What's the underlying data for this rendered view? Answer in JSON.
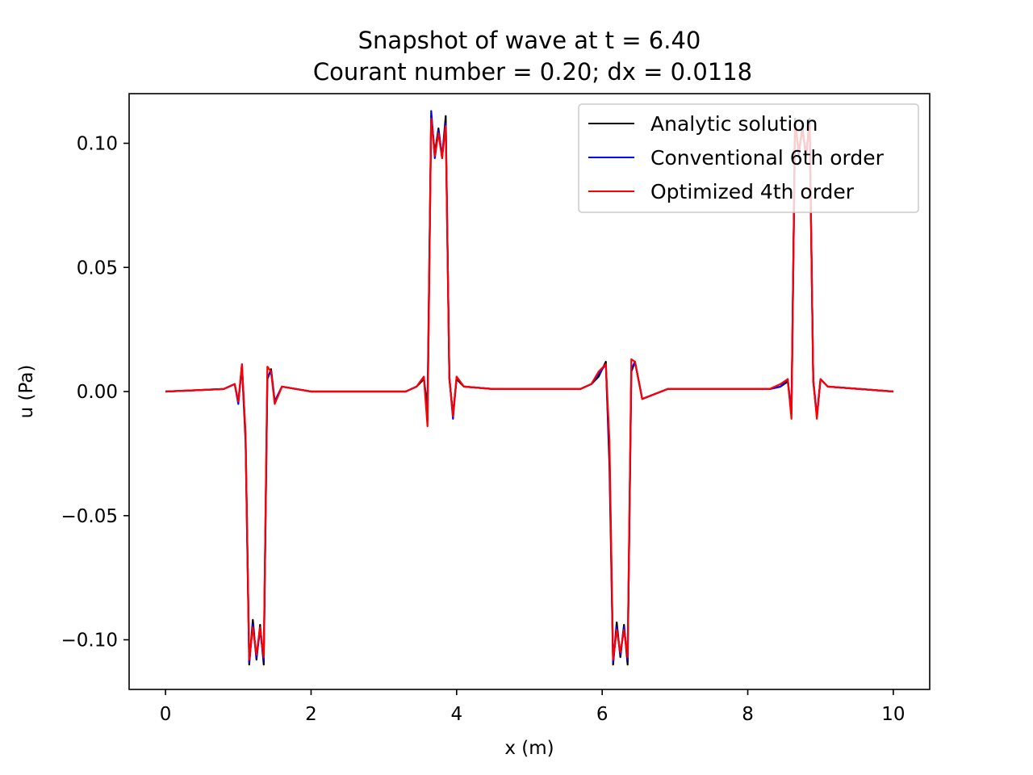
{
  "chart_data": {
    "type": "line",
    "title": "Snapshot of wave at t = 6.40",
    "subtitle": "Courant number = 0.20; dx = 0.0118",
    "xlabel": "x (m)",
    "ylabel": "u (Pa)",
    "xlim": [
      -0.5,
      10.5
    ],
    "ylim": [
      -0.12,
      0.12
    ],
    "xticks": [
      0,
      2,
      4,
      6,
      8,
      10
    ],
    "xtick_labels": [
      "0",
      "2",
      "4",
      "6",
      "8",
      "10"
    ],
    "yticks": [
      -0.1,
      -0.05,
      0.0,
      0.05,
      0.1
    ],
    "ytick_labels": [
      "−0.10",
      "−0.05",
      "0.00",
      "0.05",
      "0.10"
    ],
    "grid": false,
    "legend_position": "top-right",
    "series": [
      {
        "name": "Analytic solution",
        "color": "#000000",
        "x": [
          0,
          0.8,
          0.95,
          1.0,
          1.05,
          1.1,
          1.15,
          1.2,
          1.25,
          1.3,
          1.35,
          1.4,
          1.45,
          1.5,
          1.6,
          2.0,
          3.3,
          3.45,
          3.55,
          3.6,
          3.65,
          3.7,
          3.75,
          3.8,
          3.85,
          3.9,
          3.95,
          4.0,
          4.1,
          4.5,
          5.7,
          5.85,
          5.95,
          6.05,
          6.1,
          6.15,
          6.2,
          6.25,
          6.3,
          6.35,
          6.4,
          6.45,
          6.55,
          6.9,
          8.3,
          8.45,
          8.55,
          8.6,
          8.65,
          8.7,
          8.75,
          8.8,
          8.85,
          8.9,
          8.95,
          9.0,
          9.1,
          10.0
        ],
        "y": [
          0,
          0.001,
          0.003,
          -0.004,
          0.01,
          -0.02,
          -0.11,
          -0.092,
          -0.108,
          -0.094,
          -0.11,
          0.005,
          0.009,
          -0.004,
          0.002,
          0,
          0,
          0.002,
          0.005,
          -0.006,
          0.111,
          0.096,
          0.106,
          0.094,
          0.111,
          0.005,
          -0.009,
          0.005,
          0.002,
          0.001,
          0.001,
          0.003,
          0.006,
          0.012,
          -0.03,
          -0.11,
          -0.093,
          -0.107,
          -0.094,
          -0.11,
          0.008,
          0.012,
          -0.003,
          0.001,
          0.001,
          0.002,
          0.004,
          -0.008,
          0.11,
          0.095,
          0.107,
          0.094,
          0.11,
          0.004,
          -0.01,
          0.005,
          0.002,
          0
        ]
      },
      {
        "name": "Conventional 6th order",
        "color": "#0000ff",
        "x": [
          0,
          0.8,
          0.95,
          1.0,
          1.05,
          1.1,
          1.15,
          1.2,
          1.25,
          1.3,
          1.35,
          1.4,
          1.45,
          1.5,
          1.6,
          2.0,
          3.3,
          3.45,
          3.55,
          3.6,
          3.65,
          3.7,
          3.75,
          3.8,
          3.85,
          3.9,
          3.95,
          4.0,
          4.1,
          4.5,
          5.7,
          5.85,
          5.95,
          6.05,
          6.1,
          6.15,
          6.2,
          6.25,
          6.3,
          6.35,
          6.4,
          6.45,
          6.55,
          6.9,
          8.3,
          8.45,
          8.55,
          8.6,
          8.65,
          8.7,
          8.75,
          8.8,
          8.85,
          8.9,
          8.95,
          9.0,
          9.1,
          10.0
        ],
        "y": [
          0,
          0.001,
          0.003,
          -0.005,
          0.011,
          -0.018,
          -0.109,
          -0.094,
          -0.107,
          -0.096,
          -0.108,
          0.006,
          0.008,
          -0.004,
          0.002,
          0,
          0,
          0.002,
          0.006,
          -0.012,
          0.113,
          0.094,
          0.105,
          0.095,
          0.108,
          0.006,
          -0.011,
          0.006,
          0.002,
          0.001,
          0.001,
          0.003,
          0.007,
          0.011,
          -0.025,
          -0.109,
          -0.095,
          -0.106,
          -0.095,
          -0.108,
          0.009,
          0.012,
          -0.003,
          0.001,
          0.001,
          0.002,
          0.005,
          -0.009,
          0.109,
          0.096,
          0.106,
          0.095,
          0.108,
          0.005,
          -0.01,
          0.005,
          0.002,
          0
        ]
      },
      {
        "name": "Optimized 4th order",
        "color": "#ff0000",
        "x": [
          0,
          0.8,
          0.95,
          1.0,
          1.05,
          1.1,
          1.15,
          1.2,
          1.25,
          1.3,
          1.35,
          1.4,
          1.45,
          1.5,
          1.6,
          2.0,
          3.3,
          3.45,
          3.55,
          3.6,
          3.65,
          3.7,
          3.75,
          3.8,
          3.85,
          3.9,
          3.95,
          4.0,
          4.1,
          4.5,
          5.7,
          5.85,
          5.95,
          6.05,
          6.1,
          6.15,
          6.2,
          6.25,
          6.3,
          6.35,
          6.4,
          6.45,
          6.55,
          6.9,
          8.3,
          8.45,
          8.55,
          8.6,
          8.65,
          8.7,
          8.75,
          8.8,
          8.85,
          8.9,
          8.95,
          9.0,
          9.1,
          10.0
        ],
        "y": [
          0,
          0.001,
          0.003,
          -0.004,
          0.011,
          -0.017,
          -0.108,
          -0.095,
          -0.106,
          -0.095,
          -0.107,
          0.01,
          0.008,
          -0.005,
          0.002,
          0,
          0,
          0.002,
          0.006,
          -0.014,
          0.11,
          0.095,
          0.104,
          0.094,
          0.107,
          0.006,
          -0.01,
          0.006,
          0.002,
          0.001,
          0.001,
          0.003,
          0.008,
          0.011,
          -0.02,
          -0.108,
          -0.096,
          -0.105,
          -0.096,
          -0.107,
          0.013,
          0.012,
          -0.003,
          0.001,
          0.001,
          0.003,
          0.005,
          -0.011,
          0.108,
          0.097,
          0.105,
          0.096,
          0.107,
          0.005,
          -0.011,
          0.005,
          0.002,
          0
        ]
      }
    ]
  }
}
